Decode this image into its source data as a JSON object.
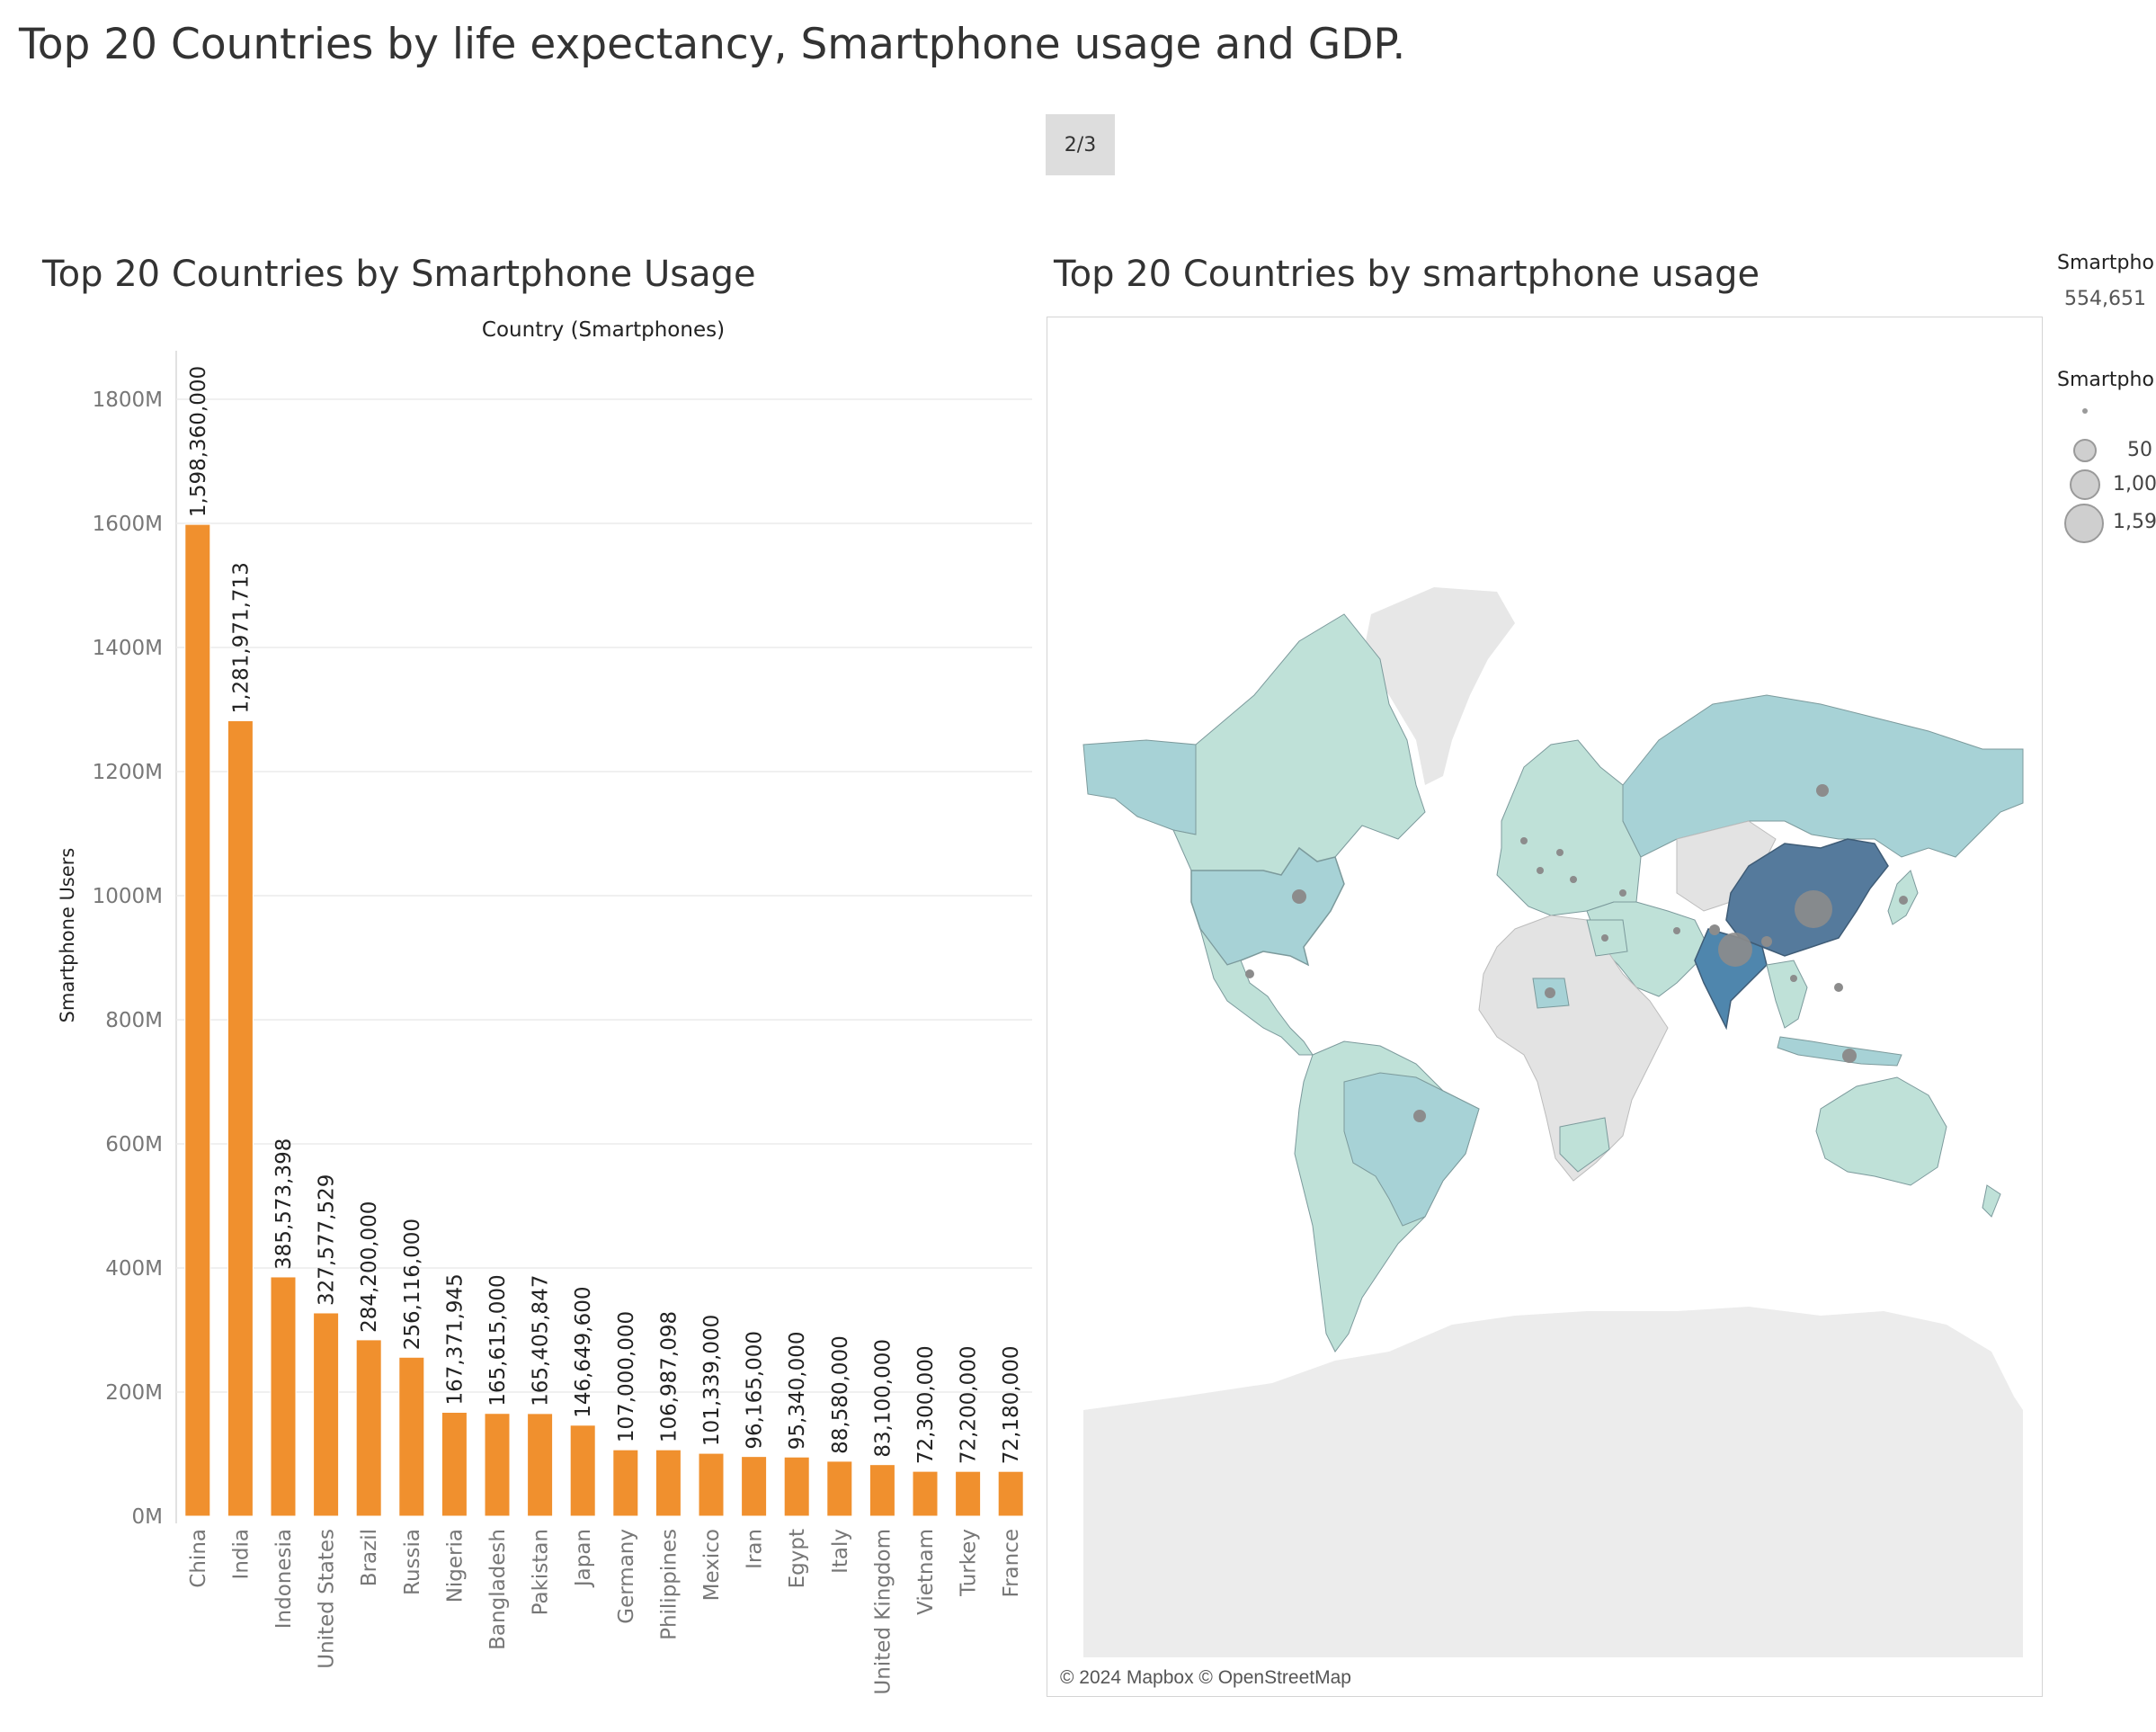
{
  "dashboard": {
    "title": "Top 20 Countries by life expectancy, Smartphone usage and GDP.",
    "page_indicator": "2/3"
  },
  "bar_chart": {
    "title": "Top 20 Countries by Smartphone Usage",
    "color": "#f0902e"
  },
  "map": {
    "title": "Top 20 Countries by smartphone usage",
    "attribution": "© 2024 Mapbox © OpenStreetMap",
    "colors": {
      "low": "#bfe1d8",
      "mid": "#a7d2d6",
      "high": "#557a9c",
      "india": "#4f86ad",
      "no_data": "#e3e3e3",
      "bubble": "#8c8c8c"
    }
  },
  "legends": {
    "color_title": "Smartpho",
    "color_value": "554,651",
    "size_title": "Smartpho",
    "size_items": [
      "50",
      "1,00",
      "1,59"
    ]
  },
  "chart_data": {
    "type": "bar",
    "title": "Top 20 Countries by Smartphone Usage",
    "xlabel": "Country (Smartphones)",
    "ylabel": "Smartphone Users",
    "categories": [
      "China",
      "India",
      "Indonesia",
      "United States",
      "Brazil",
      "Russia",
      "Nigeria",
      "Bangladesh",
      "Pakistan",
      "Japan",
      "Germany",
      "Philippines",
      "Mexico",
      "Iran",
      "Egypt",
      "Italy",
      "United Kingdom",
      "Vietnam",
      "Turkey",
      "France"
    ],
    "values": [
      1598360000,
      1281971713,
      385573398,
      327577529,
      284200000,
      256116000,
      167371945,
      165615000,
      165405847,
      146649600,
      107000000,
      106987098,
      101339000,
      96165000,
      95340000,
      88580000,
      83100000,
      72300000,
      72200000,
      72180000
    ],
    "data_labels": [
      "1,598,360,000",
      "1,281,971,713",
      "385,573,398",
      "327,577,529",
      "284,200,000",
      "256,116,000",
      "167,371,945",
      "165,615,000",
      "165,405,847",
      "146,649,600",
      "107,000,000",
      "106,987,098",
      "101,339,000",
      "96,165,000",
      "95,340,000",
      "88,580,000",
      "83,100,000",
      "72,300,000",
      "72,200,000",
      "72,180,000"
    ],
    "y_ticks": [
      "0M",
      "200M",
      "400M",
      "600M",
      "800M",
      "1000M",
      "1200M",
      "1400M",
      "1600M",
      "1800M"
    ],
    "ylim": [
      0,
      1900000000
    ],
    "grid": true
  }
}
